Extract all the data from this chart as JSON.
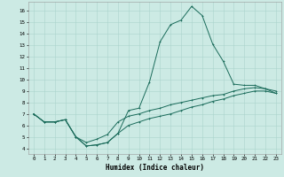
{
  "title": "",
  "xlabel": "Humidex (Indice chaleur)",
  "ylabel": "",
  "xlim": [
    -0.5,
    23.5
  ],
  "ylim": [
    3.5,
    16.8
  ],
  "xticks": [
    0,
    1,
    2,
    3,
    4,
    5,
    6,
    7,
    8,
    9,
    10,
    11,
    12,
    13,
    14,
    15,
    16,
    17,
    18,
    19,
    20,
    21,
    22,
    23
  ],
  "yticks": [
    4,
    5,
    6,
    7,
    8,
    9,
    10,
    11,
    12,
    13,
    14,
    15,
    16
  ],
  "bg_color": "#cceae4",
  "grid_color": "#aad4cc",
  "line_color": "#1a6b5a",
  "line1_x": [
    0,
    1,
    2,
    3,
    4,
    5,
    6,
    7,
    8,
    9,
    10,
    11,
    12,
    13,
    14,
    15,
    16,
    17,
    18,
    19,
    20,
    21,
    22,
    23
  ],
  "line1_y": [
    7.0,
    6.3,
    6.3,
    6.5,
    5.0,
    4.2,
    4.3,
    4.5,
    5.3,
    7.3,
    7.5,
    9.8,
    13.3,
    14.8,
    15.2,
    16.4,
    15.6,
    13.1,
    11.6,
    9.6,
    9.5,
    9.5,
    9.2,
    8.8
  ],
  "line2_x": [
    0,
    1,
    2,
    3,
    4,
    5,
    6,
    7,
    8,
    9,
    10,
    11,
    12,
    13,
    14,
    15,
    16,
    17,
    18,
    19,
    20,
    21,
    22,
    23
  ],
  "line2_y": [
    7.0,
    6.3,
    6.3,
    6.5,
    5.0,
    4.2,
    4.3,
    4.5,
    5.3,
    6.0,
    6.3,
    6.6,
    6.8,
    7.0,
    7.3,
    7.6,
    7.8,
    8.1,
    8.3,
    8.6,
    8.8,
    9.0,
    9.0,
    8.8
  ],
  "line3_x": [
    0,
    1,
    2,
    3,
    4,
    5,
    6,
    7,
    8,
    9,
    10,
    11,
    12,
    13,
    14,
    15,
    16,
    17,
    18,
    19,
    20,
    21,
    22,
    23
  ],
  "line3_y": [
    7.0,
    6.3,
    6.3,
    6.5,
    5.0,
    4.5,
    4.8,
    5.2,
    6.3,
    6.8,
    7.0,
    7.3,
    7.5,
    7.8,
    8.0,
    8.2,
    8.4,
    8.6,
    8.7,
    9.0,
    9.2,
    9.3,
    9.2,
    9.0
  ],
  "xlabel_fontsize": 5.5,
  "tick_fontsize": 4.2,
  "lw": 0.7,
  "ms": 2.0,
  "mew": 0.6
}
